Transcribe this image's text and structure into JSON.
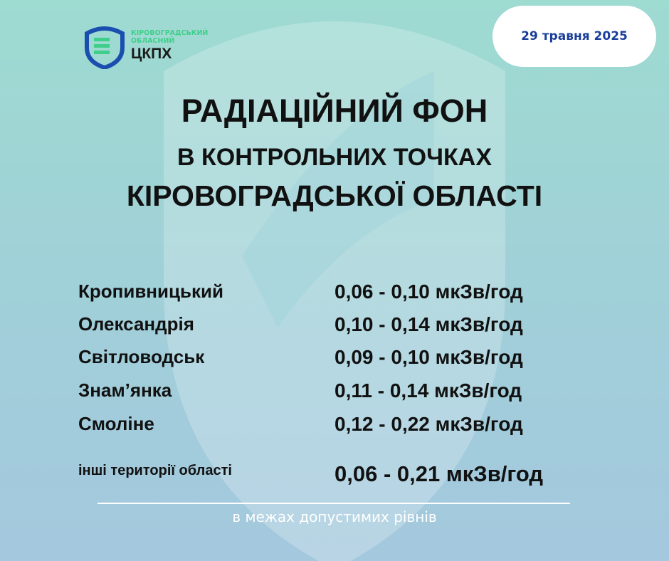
{
  "logo": {
    "line1": "КІРОВОГРАДСЬКИЙ",
    "line2": "ОБЛАСНИЙ",
    "name": "ЦКПХ"
  },
  "date": "29 травня 2025",
  "title": {
    "line1": "РАДІАЦІЙНИЙ ФОН",
    "line2": "В КОНТРОЛЬНИХ ТОЧКАХ",
    "line3": "КІРОВОГРАДСЬКОЇ ОБЛАСТІ"
  },
  "rows": [
    {
      "place": "Кропивницький",
      "value": "0,06 - 0,10 мкЗв/год"
    },
    {
      "place": "Олександрія",
      "value": "0,10 - 0,14 мкЗв/год"
    },
    {
      "place": "Світловодськ",
      "value": "0,09 - 0,10 мкЗв/год"
    },
    {
      "place": "Знам’янка",
      "value": "0,11 - 0,14 мкЗв/год"
    },
    {
      "place": "Смоліне",
      "value": "0,12 - 0,22 мкЗв/год"
    }
  ],
  "other": {
    "place": "інші території області",
    "value": "0,06 - 0,21 мкЗв/год"
  },
  "footer": "в межах допустимих рівнів",
  "colors": {
    "accent": "#1a3e9a",
    "logo_green": "#3fcf8a"
  }
}
